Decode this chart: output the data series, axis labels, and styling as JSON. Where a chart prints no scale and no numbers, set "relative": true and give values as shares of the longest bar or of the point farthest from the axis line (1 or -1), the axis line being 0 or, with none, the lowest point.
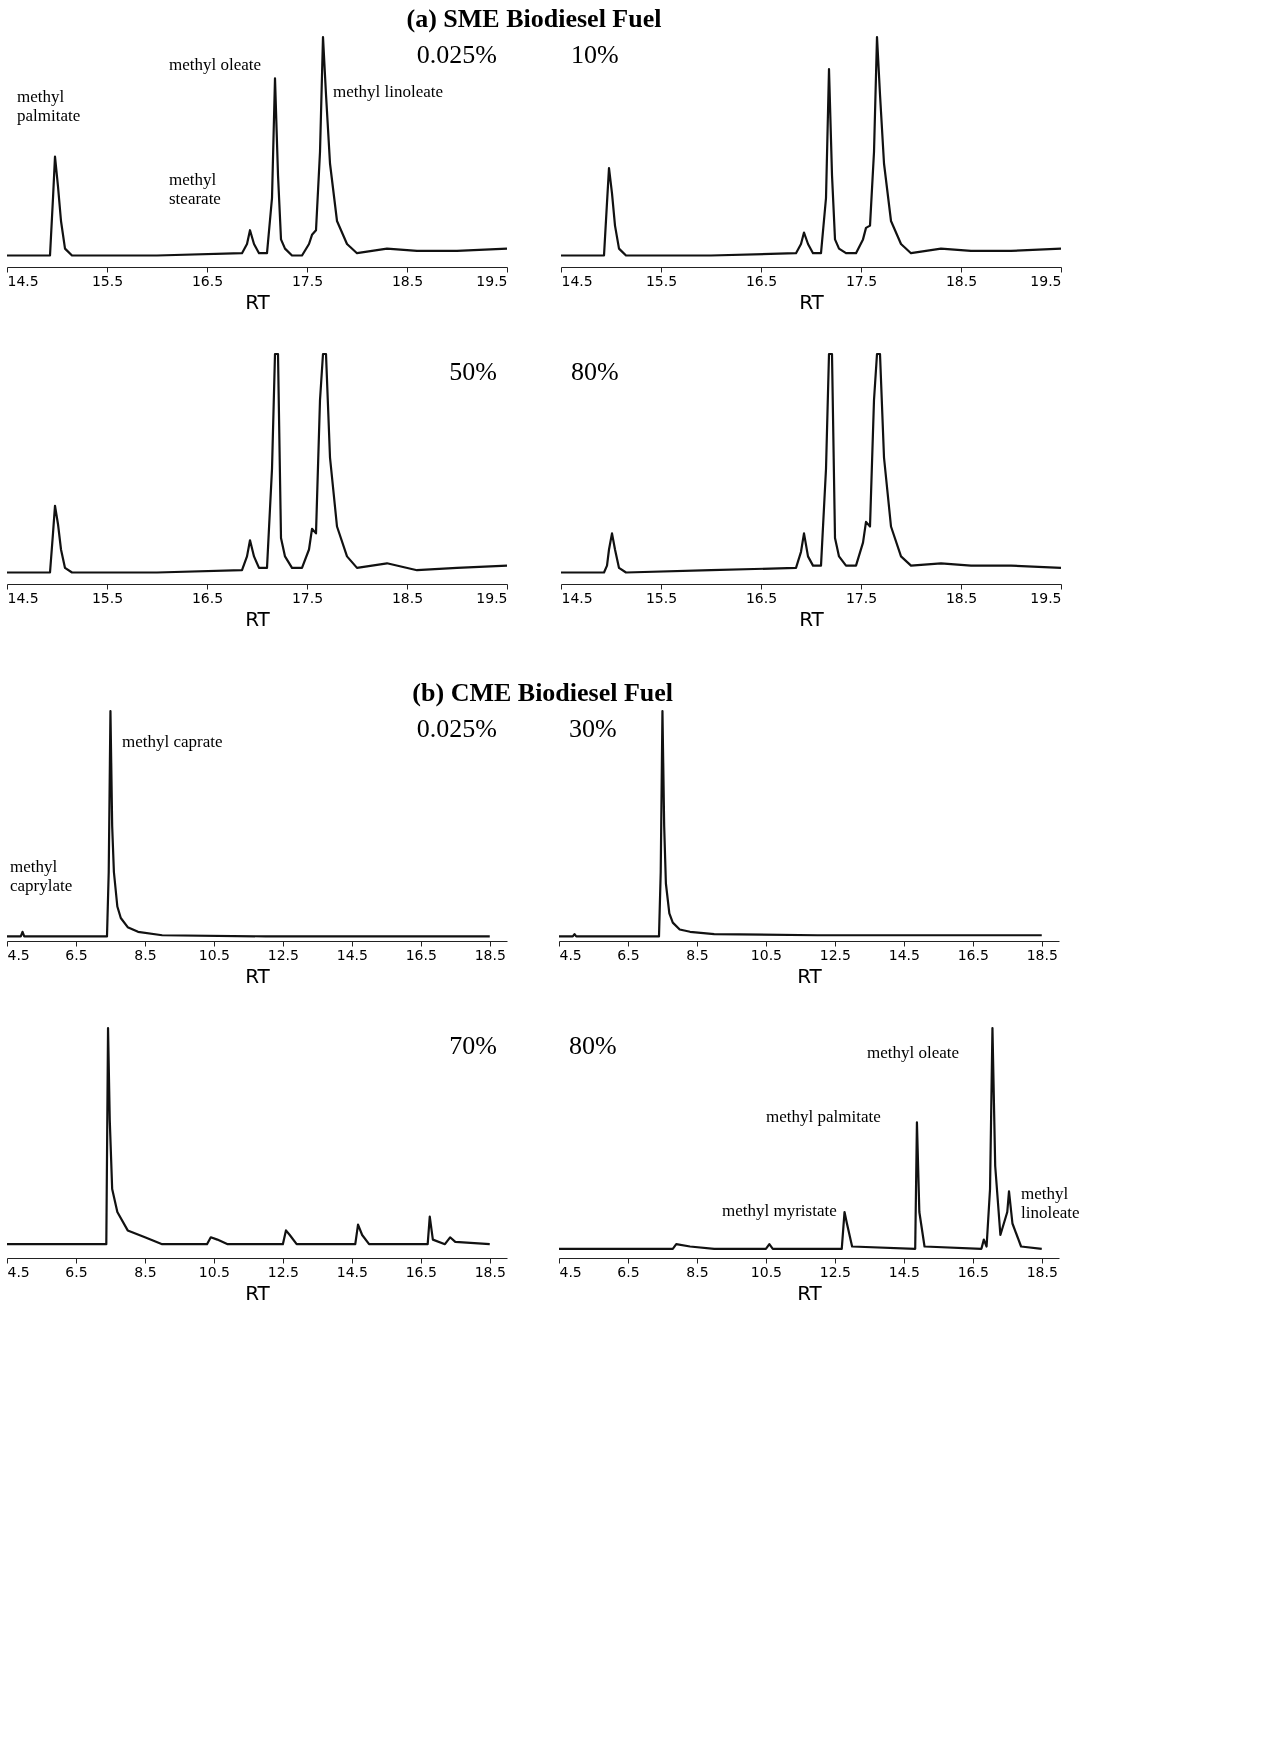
{
  "chart_data": [
    {
      "type": "line",
      "relative": true,
      "title": "(a) SME Biodiesel Fuel",
      "xlabel": "RT",
      "xlim": [
        14.5,
        19.5
      ],
      "xticks": [
        14.5,
        15.5,
        16.5,
        17.5,
        18.5,
        19.5
      ],
      "grid": false,
      "legend": false,
      "marker": "none",
      "line_style": "solid",
      "x": [
        14.5,
        14.93,
        14.96,
        14.98,
        15.01,
        15.04,
        15.08,
        15.15,
        16.0,
        16.85,
        16.9,
        16.93,
        16.97,
        17.02,
        17.1,
        17.15,
        17.18,
        17.21,
        17.24,
        17.28,
        17.35,
        17.45,
        17.52,
        17.55,
        17.59,
        17.63,
        17.66,
        17.69,
        17.73,
        17.8,
        17.9,
        18.0,
        18.3,
        18.6,
        19.0,
        19.5
      ],
      "series": [
        {
          "color": "#111111",
          "values": [
            0.05,
            0.05,
            0.3,
            0.48,
            0.35,
            0.2,
            0.08,
            0.05,
            0.05,
            0.06,
            0.1,
            0.16,
            0.1,
            0.06,
            0.06,
            0.3,
            0.82,
            0.4,
            0.12,
            0.08,
            0.05,
            0.05,
            0.1,
            0.14,
            0.16,
            0.5,
            1.0,
            0.75,
            0.45,
            0.2,
            0.1,
            0.06,
            0.08,
            0.07,
            0.07,
            0.08
          ]
        }
      ],
      "annotations": [
        "0.025%",
        "methyl palmitate",
        "methyl oleate",
        "methyl stearate",
        "methyl linoleate"
      ]
    },
    {
      "type": "line",
      "relative": true,
      "xlabel": "RT",
      "xlim": [
        14.5,
        19.5
      ],
      "xticks": [
        14.5,
        15.5,
        16.5,
        17.5,
        18.5,
        19.5
      ],
      "grid": false,
      "legend": false,
      "marker": "none",
      "line_style": "solid",
      "x": [
        14.5,
        14.93,
        14.96,
        14.98,
        15.01,
        15.04,
        15.08,
        15.15,
        16.0,
        16.85,
        16.9,
        16.93,
        16.97,
        17.02,
        17.1,
        17.15,
        17.18,
        17.21,
        17.24,
        17.28,
        17.35,
        17.45,
        17.52,
        17.55,
        17.59,
        17.63,
        17.66,
        17.69,
        17.73,
        17.8,
        17.9,
        18.0,
        18.3,
        18.6,
        19.0,
        19.5
      ],
      "series": [
        {
          "color": "#111111",
          "values": [
            0.05,
            0.05,
            0.28,
            0.43,
            0.32,
            0.18,
            0.08,
            0.05,
            0.05,
            0.06,
            0.1,
            0.15,
            0.1,
            0.06,
            0.06,
            0.3,
            0.86,
            0.4,
            0.12,
            0.08,
            0.06,
            0.06,
            0.12,
            0.17,
            0.18,
            0.5,
            1.0,
            0.75,
            0.45,
            0.2,
            0.1,
            0.06,
            0.08,
            0.07,
            0.07,
            0.08
          ]
        }
      ],
      "annotations": [
        "10%"
      ]
    },
    {
      "type": "line",
      "relative": true,
      "xlabel": "RT",
      "xlim": [
        14.5,
        19.5
      ],
      "xticks": [
        14.5,
        15.5,
        16.5,
        17.5,
        18.5,
        19.5
      ],
      "grid": false,
      "legend": false,
      "marker": "none",
      "line_style": "solid",
      "x": [
        14.5,
        14.93,
        14.96,
        14.98,
        15.01,
        15.04,
        15.08,
        15.15,
        16.0,
        16.85,
        16.9,
        16.93,
        16.97,
        17.02,
        17.1,
        17.15,
        17.18,
        17.21,
        17.24,
        17.28,
        17.35,
        17.45,
        17.52,
        17.55,
        17.59,
        17.63,
        17.66,
        17.69,
        17.73,
        17.8,
        17.9,
        18.0,
        18.3,
        18.6,
        19.0,
        19.5
      ],
      "series": [
        {
          "color": "#111111",
          "values": [
            0.05,
            0.05,
            0.22,
            0.34,
            0.26,
            0.15,
            0.07,
            0.05,
            0.05,
            0.06,
            0.12,
            0.19,
            0.12,
            0.07,
            0.07,
            0.5,
            1.0,
            1.0,
            0.2,
            0.12,
            0.07,
            0.07,
            0.15,
            0.24,
            0.22,
            0.8,
            1.0,
            1.0,
            0.55,
            0.25,
            0.12,
            0.07,
            0.09,
            0.06,
            0.07,
            0.08
          ]
        }
      ],
      "annotations": [
        "50%"
      ]
    },
    {
      "type": "line",
      "relative": true,
      "xlabel": "RT",
      "xlim": [
        14.5,
        19.5
      ],
      "xticks": [
        14.5,
        15.5,
        16.5,
        17.5,
        18.5,
        19.5
      ],
      "grid": false,
      "legend": false,
      "marker": "none",
      "line_style": "solid",
      "x": [
        14.5,
        14.93,
        14.96,
        14.98,
        15.01,
        15.04,
        15.08,
        15.15,
        16.0,
        16.85,
        16.9,
        16.93,
        16.97,
        17.02,
        17.1,
        17.15,
        17.18,
        17.21,
        17.24,
        17.28,
        17.35,
        17.45,
        17.52,
        17.55,
        17.59,
        17.63,
        17.66,
        17.69,
        17.73,
        17.8,
        17.9,
        18.0,
        18.3,
        18.6,
        19.0,
        19.5
      ],
      "series": [
        {
          "color": "#111111",
          "values": [
            0.05,
            0.05,
            0.08,
            0.15,
            0.22,
            0.15,
            0.07,
            0.05,
            0.06,
            0.07,
            0.14,
            0.22,
            0.12,
            0.08,
            0.08,
            0.5,
            1.0,
            1.0,
            0.2,
            0.12,
            0.08,
            0.08,
            0.18,
            0.27,
            0.25,
            0.8,
            1.0,
            1.0,
            0.55,
            0.25,
            0.12,
            0.08,
            0.09,
            0.08,
            0.08,
            0.07
          ]
        }
      ],
      "annotations": [
        "80%"
      ]
    },
    {
      "type": "line",
      "relative": true,
      "title": "(b) CME Biodiesel Fuel",
      "xlabel": "RT",
      "xlim": [
        4.5,
        19.0
      ],
      "xticks": [
        4.5,
        6.5,
        8.5,
        10.5,
        12.5,
        14.5,
        16.5,
        18.5
      ],
      "grid": false,
      "legend": false,
      "marker": "none",
      "line_style": "solid",
      "x": [
        4.5,
        4.9,
        4.95,
        5.0,
        5.1,
        7.4,
        7.45,
        7.5,
        7.55,
        7.6,
        7.7,
        7.8,
        8.0,
        8.3,
        9.0,
        12.0,
        18.5
      ],
      "series": [
        {
          "color": "#111111",
          "values": [
            0.02,
            0.02,
            0.04,
            0.02,
            0.02,
            0.02,
            0.3,
            1.0,
            0.5,
            0.3,
            0.15,
            0.1,
            0.06,
            0.04,
            0.025,
            0.02,
            0.02
          ]
        }
      ],
      "annotations": [
        "0.025%",
        "methyl caprate",
        "methyl caprylate"
      ]
    },
    {
      "type": "line",
      "relative": true,
      "xlabel": "RT",
      "xlim": [
        4.5,
        19.0
      ],
      "xticks": [
        4.5,
        6.5,
        8.5,
        10.5,
        12.5,
        14.5,
        16.5,
        18.5
      ],
      "grid": false,
      "legend": false,
      "marker": "none",
      "line_style": "solid",
      "x": [
        4.5,
        4.9,
        4.95,
        5.0,
        5.1,
        7.4,
        7.45,
        7.5,
        7.55,
        7.6,
        7.7,
        7.8,
        8.0,
        8.3,
        9.0,
        12.0,
        18.5
      ],
      "series": [
        {
          "color": "#111111",
          "values": [
            0.02,
            0.02,
            0.03,
            0.02,
            0.02,
            0.02,
            0.3,
            1.0,
            0.5,
            0.25,
            0.12,
            0.08,
            0.05,
            0.04,
            0.03,
            0.025,
            0.025
          ]
        }
      ],
      "annotations": [
        "30%"
      ]
    },
    {
      "type": "line",
      "relative": true,
      "xlabel": "RT",
      "xlim": [
        4.5,
        19.0
      ],
      "xticks": [
        4.5,
        6.5,
        8.5,
        10.5,
        12.5,
        14.5,
        16.5,
        18.5
      ],
      "grid": false,
      "legend": false,
      "marker": "none",
      "line_style": "solid",
      "x": [
        4.5,
        5.0,
        7.38,
        7.43,
        7.48,
        7.55,
        7.7,
        8.0,
        8.5,
        9.0,
        10.3,
        10.41,
        10.6,
        10.9,
        12.5,
        12.59,
        12.7,
        12.9,
        14.6,
        14.68,
        14.8,
        15.0,
        16.7,
        16.76,
        16.85,
        17.2,
        17.35,
        17.5,
        18.5
      ],
      "series": [
        {
          "color": "#111111",
          "values": [
            0.06,
            0.06,
            0.06,
            1.0,
            0.6,
            0.3,
            0.2,
            0.12,
            0.09,
            0.06,
            0.06,
            0.09,
            0.08,
            0.06,
            0.06,
            0.12,
            0.1,
            0.06,
            0.06,
            0.145,
            0.1,
            0.06,
            0.06,
            0.18,
            0.08,
            0.06,
            0.09,
            0.07,
            0.06
          ]
        }
      ],
      "annotations": [
        "70%"
      ]
    },
    {
      "type": "line",
      "relative": true,
      "xlabel": "RT",
      "xlim": [
        4.5,
        19.0
      ],
      "xticks": [
        4.5,
        6.5,
        8.5,
        10.5,
        12.5,
        14.5,
        16.5,
        18.5
      ],
      "grid": false,
      "legend": false,
      "marker": "none",
      "line_style": "solid",
      "x": [
        4.5,
        7.8,
        7.9,
        8.3,
        9.0,
        10.5,
        10.6,
        10.7,
        12.7,
        12.78,
        12.85,
        13.0,
        14.83,
        14.88,
        14.95,
        15.1,
        16.75,
        16.82,
        16.9,
        17.0,
        17.07,
        17.15,
        17.3,
        17.5,
        17.55,
        17.65,
        17.9,
        18.5
      ],
      "series": [
        {
          "color": "#111111",
          "values": [
            0.04,
            0.04,
            0.06,
            0.05,
            0.04,
            0.04,
            0.06,
            0.04,
            0.04,
            0.2,
            0.15,
            0.05,
            0.04,
            0.59,
            0.2,
            0.05,
            0.04,
            0.08,
            0.05,
            0.3,
            1.0,
            0.4,
            0.1,
            0.2,
            0.29,
            0.15,
            0.05,
            0.04
          ]
        }
      ],
      "annotations": [
        "80%",
        "methyl myristate",
        "methyl palmitate",
        "methyl oleate",
        "methyl linoleate"
      ]
    }
  ]
}
